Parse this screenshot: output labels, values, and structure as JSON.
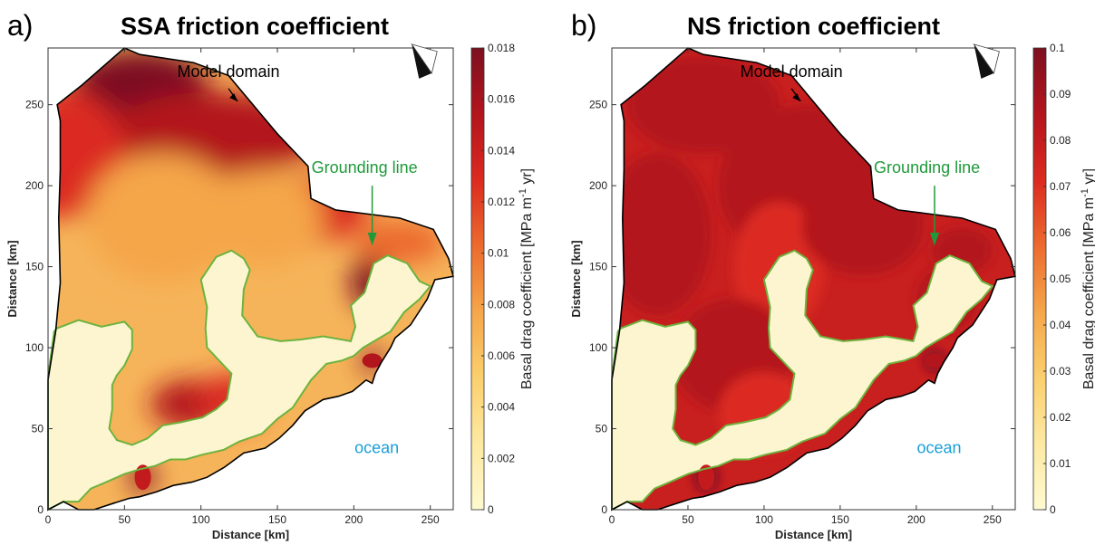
{
  "colors": {
    "ocean_fill": "#fdf5d0",
    "grounding_line": "#6cb33e",
    "grounding_annot": "#1f9a3a",
    "ocean_text": "#1a9ed9",
    "domain_outline": "#000000",
    "cmap": [
      "#fefad0",
      "#fde9a2",
      "#fbcf6e",
      "#f5a64a",
      "#ec6b2e",
      "#dc2a20",
      "#b3151d",
      "#7d1020"
    ]
  },
  "chart_data": [
    {
      "type": "heatmap",
      "panel_letter": "a)",
      "title": "SSA friction coefficient",
      "xlabel": "Distance [km]",
      "ylabel": "Distance [km]",
      "xlim": [
        0,
        265
      ],
      "ylim": [
        0,
        285
      ],
      "xticks": [
        "0",
        "50",
        "100",
        "150",
        "200",
        "250"
      ],
      "yticks": [
        "0",
        "50",
        "100",
        "150",
        "200",
        "250"
      ],
      "colorbar": {
        "label": "Basal drag coefficient [MPa m",
        "label_sup": "-1",
        "label_end": " yr]",
        "range": [
          0,
          0.018
        ],
        "ticks": [
          "0",
          "0.002",
          "0.004",
          "0.006",
          "0.008",
          "0.01",
          "0.012",
          "0.014",
          "0.016",
          "0.018"
        ]
      },
      "annotations": {
        "model_domain": "Model domain",
        "grounding_line": "Grounding line",
        "ocean": "ocean"
      },
      "compass_icon": "north-arrow-icon",
      "grid": false
    },
    {
      "type": "heatmap",
      "panel_letter": "b)",
      "title": "NS friction coefficient",
      "xlabel": "Distance [km]",
      "ylabel": "Distance [km]",
      "xlim": [
        0,
        265
      ],
      "ylim": [
        0,
        285
      ],
      "xticks": [
        "0",
        "50",
        "100",
        "150",
        "200",
        "250"
      ],
      "yticks": [
        "0",
        "50",
        "100",
        "150",
        "200",
        "250"
      ],
      "colorbar": {
        "label": "Basal drag coefficient [MPa m",
        "label_sup": "-1",
        "label_end": " yr]",
        "range": [
          0,
          0.1
        ],
        "ticks": [
          "0",
          "0.01",
          "0.02",
          "0.03",
          "0.04",
          "0.05",
          "0.06",
          "0.07",
          "0.08",
          "0.09",
          "0.1"
        ]
      },
      "annotations": {
        "model_domain": "Model domain",
        "grounding_line": "Grounding line",
        "ocean": "ocean"
      },
      "compass_icon": "north-arrow-icon",
      "grid": false
    }
  ]
}
